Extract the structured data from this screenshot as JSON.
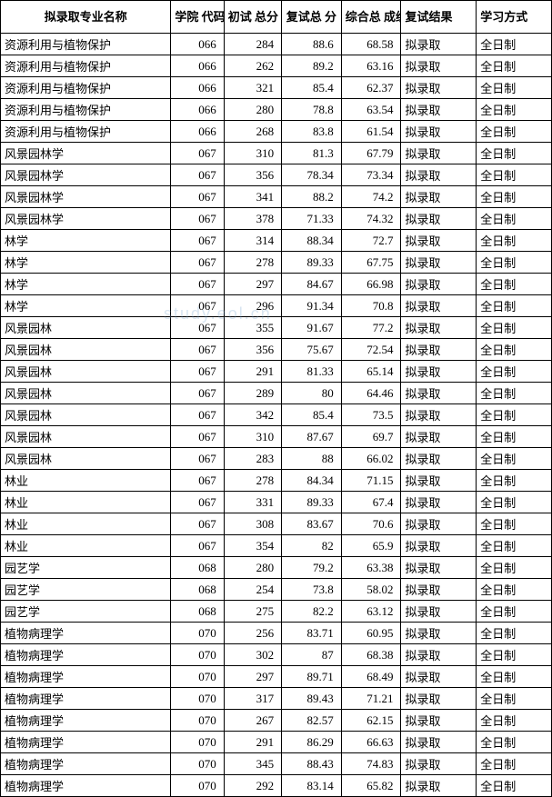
{
  "table": {
    "columns": [
      {
        "key": "major",
        "label": "拟录取专业名称",
        "class": "col-major"
      },
      {
        "key": "code",
        "label": "学院\n代码",
        "class": "col-code"
      },
      {
        "key": "chushi",
        "label": "初试\n总分",
        "class": "col-chushi"
      },
      {
        "key": "fushi",
        "label": "复试总\n分",
        "class": "col-fushi"
      },
      {
        "key": "zonghe",
        "label": "综合总\n成绩",
        "class": "col-zonghe"
      },
      {
        "key": "result",
        "label": "复试结果",
        "class": "col-result"
      },
      {
        "key": "mode",
        "label": "学习方式",
        "class": "col-mode"
      }
    ],
    "rows": [
      {
        "major": "资源利用与植物保护",
        "code": "066",
        "chushi": "284",
        "fushi": "88.6",
        "zonghe": "68.58",
        "result": "拟录取",
        "mode": "全日制"
      },
      {
        "major": "资源利用与植物保护",
        "code": "066",
        "chushi": "262",
        "fushi": "89.2",
        "zonghe": "63.16",
        "result": "拟录取",
        "mode": "全日制"
      },
      {
        "major": "资源利用与植物保护",
        "code": "066",
        "chushi": "321",
        "fushi": "85.4",
        "zonghe": "62.37",
        "result": "拟录取",
        "mode": "全日制"
      },
      {
        "major": "资源利用与植物保护",
        "code": "066",
        "chushi": "280",
        "fushi": "78.8",
        "zonghe": "63.54",
        "result": "拟录取",
        "mode": "全日制"
      },
      {
        "major": "资源利用与植物保护",
        "code": "066",
        "chushi": "268",
        "fushi": "83.8",
        "zonghe": "61.54",
        "result": "拟录取",
        "mode": "全日制"
      },
      {
        "major": "风景园林学",
        "code": "067",
        "chushi": "310",
        "fushi": "81.3",
        "zonghe": "67.79",
        "result": "拟录取",
        "mode": "全日制"
      },
      {
        "major": "风景园林学",
        "code": "067",
        "chushi": "356",
        "fushi": "78.34",
        "zonghe": "73.34",
        "result": "拟录取",
        "mode": "全日制"
      },
      {
        "major": "风景园林学",
        "code": "067",
        "chushi": "341",
        "fushi": "88.2",
        "zonghe": "74.2",
        "result": "拟录取",
        "mode": "全日制"
      },
      {
        "major": "风景园林学",
        "code": "067",
        "chushi": "378",
        "fushi": "71.33",
        "zonghe": "74.32",
        "result": "拟录取",
        "mode": "全日制"
      },
      {
        "major": "林学",
        "code": "067",
        "chushi": "314",
        "fushi": "88.34",
        "zonghe": "72.7",
        "result": "拟录取",
        "mode": "全日制"
      },
      {
        "major": "林学",
        "code": "067",
        "chushi": "278",
        "fushi": "89.33",
        "zonghe": "67.75",
        "result": "拟录取",
        "mode": "全日制"
      },
      {
        "major": "林学",
        "code": "067",
        "chushi": "297",
        "fushi": "84.67",
        "zonghe": "66.98",
        "result": "拟录取",
        "mode": "全日制"
      },
      {
        "major": "林学",
        "code": "067",
        "chushi": "296",
        "fushi": "91.34",
        "zonghe": "70.8",
        "result": "拟录取",
        "mode": "全日制"
      },
      {
        "major": "风景园林",
        "code": "067",
        "chushi": "355",
        "fushi": "91.67",
        "zonghe": "77.2",
        "result": "拟录取",
        "mode": "全日制"
      },
      {
        "major": "风景园林",
        "code": "067",
        "chushi": "356",
        "fushi": "75.67",
        "zonghe": "72.54",
        "result": "拟录取",
        "mode": "全日制"
      },
      {
        "major": "风景园林",
        "code": "067",
        "chushi": "291",
        "fushi": "81.33",
        "zonghe": "65.14",
        "result": "拟录取",
        "mode": "全日制"
      },
      {
        "major": "风景园林",
        "code": "067",
        "chushi": "289",
        "fushi": "80",
        "zonghe": "64.46",
        "result": "拟录取",
        "mode": "全日制"
      },
      {
        "major": "风景园林",
        "code": "067",
        "chushi": "342",
        "fushi": "85.4",
        "zonghe": "73.5",
        "result": "拟录取",
        "mode": "全日制"
      },
      {
        "major": "风景园林",
        "code": "067",
        "chushi": "310",
        "fushi": "87.67",
        "zonghe": "69.7",
        "result": "拟录取",
        "mode": "全日制"
      },
      {
        "major": "风景园林",
        "code": "067",
        "chushi": "283",
        "fushi": "88",
        "zonghe": "66.02",
        "result": "拟录取",
        "mode": "全日制"
      },
      {
        "major": "林业",
        "code": "067",
        "chushi": "278",
        "fushi": "84.34",
        "zonghe": "71.15",
        "result": "拟录取",
        "mode": "全日制"
      },
      {
        "major": "林业",
        "code": "067",
        "chushi": "331",
        "fushi": "89.33",
        "zonghe": "67.4",
        "result": "拟录取",
        "mode": "全日制"
      },
      {
        "major": "林业",
        "code": "067",
        "chushi": "308",
        "fushi": "83.67",
        "zonghe": "70.6",
        "result": "拟录取",
        "mode": "全日制"
      },
      {
        "major": "林业",
        "code": "067",
        "chushi": "354",
        "fushi": "82",
        "zonghe": "65.9",
        "result": "拟录取",
        "mode": "全日制"
      },
      {
        "major": "园艺学",
        "code": "068",
        "chushi": "280",
        "fushi": "79.2",
        "zonghe": "63.38",
        "result": "拟录取",
        "mode": "全日制"
      },
      {
        "major": "园艺学",
        "code": "068",
        "chushi": "254",
        "fushi": "73.8",
        "zonghe": "58.02",
        "result": "拟录取",
        "mode": "全日制"
      },
      {
        "major": "园艺学",
        "code": "068",
        "chushi": "275",
        "fushi": "82.2",
        "zonghe": "63.12",
        "result": "拟录取",
        "mode": "全日制"
      },
      {
        "major": "植物病理学",
        "code": "070",
        "chushi": "256",
        "fushi": "83.71",
        "zonghe": "60.95",
        "result": "拟录取",
        "mode": "全日制"
      },
      {
        "major": "植物病理学",
        "code": "070",
        "chushi": "302",
        "fushi": "87",
        "zonghe": "68.38",
        "result": "拟录取",
        "mode": "全日制"
      },
      {
        "major": "植物病理学",
        "code": "070",
        "chushi": "297",
        "fushi": "89.71",
        "zonghe": "68.49",
        "result": "拟录取",
        "mode": "全日制"
      },
      {
        "major": "植物病理学",
        "code": "070",
        "chushi": "317",
        "fushi": "89.43",
        "zonghe": "71.21",
        "result": "拟录取",
        "mode": "全日制"
      },
      {
        "major": "植物病理学",
        "code": "070",
        "chushi": "267",
        "fushi": "82.57",
        "zonghe": "62.15",
        "result": "拟录取",
        "mode": "全日制"
      },
      {
        "major": "植物病理学",
        "code": "070",
        "chushi": "291",
        "fushi": "86.29",
        "zonghe": "66.63",
        "result": "拟录取",
        "mode": "全日制"
      },
      {
        "major": "植物病理学",
        "code": "070",
        "chushi": "345",
        "fushi": "88.43",
        "zonghe": "74.83",
        "result": "拟录取",
        "mode": "全日制"
      },
      {
        "major": "植物病理学",
        "code": "070",
        "chushi": "292",
        "fushi": "83.14",
        "zonghe": "65.82",
        "result": "拟录取",
        "mode": "全日制"
      }
    ],
    "watermark_text": "study.eol.cn",
    "colors": {
      "border": "#000000",
      "background": "#ffffff",
      "text": "#000000",
      "watermark": "rgba(100,150,200,0.25)"
    },
    "font": {
      "family": "SimSun",
      "size_body": 13,
      "size_header": 13
    }
  }
}
